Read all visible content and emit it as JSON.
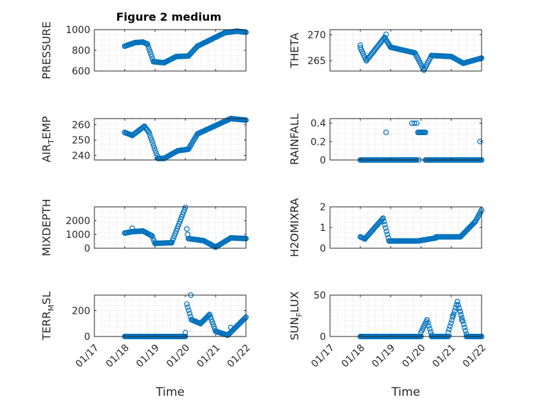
{
  "colors": {
    "marker": "#0072bd",
    "axis": "#262626",
    "grid": "#c9c9c9"
  },
  "chart_data": [
    {
      "type": "scatter",
      "title": "Figure 2 medium",
      "ylabel": "PRESSURE",
      "ylabel_sub": "",
      "xlabel": "",
      "xlim": [
        17,
        22
      ],
      "ylim": [
        600,
        1000
      ],
      "yticks": [
        600,
        800,
        1000
      ],
      "yticklabels": [
        "600",
        "800",
        "1000"
      ],
      "xticklabels": [],
      "grid": true,
      "segments": [
        {
          "x0": 18.0,
          "x1": 18.35,
          "y0": 840,
          "y1": 875
        },
        {
          "x0": 18.35,
          "x1": 18.6,
          "y0": 875,
          "y1": 880
        },
        {
          "x0": 18.6,
          "x1": 18.75,
          "y0": 880,
          "y1": 860
        },
        {
          "x0": 18.75,
          "x1": 18.95,
          "y0": 860,
          "y1": 690
        },
        {
          "x0": 18.95,
          "x1": 19.3,
          "y0": 690,
          "y1": 680
        },
        {
          "x0": 19.3,
          "x1": 19.7,
          "y0": 680,
          "y1": 740
        },
        {
          "x0": 19.7,
          "x1": 20.1,
          "y0": 740,
          "y1": 745
        },
        {
          "x0": 20.1,
          "x1": 20.4,
          "y0": 745,
          "y1": 840
        },
        {
          "x0": 20.4,
          "x1": 21.3,
          "y0": 840,
          "y1": 970
        },
        {
          "x0": 21.3,
          "x1": 21.7,
          "y0": 970,
          "y1": 985
        },
        {
          "x0": 21.7,
          "x1": 22.0,
          "y0": 985,
          "y1": 975
        }
      ],
      "points": []
    },
    {
      "type": "scatter",
      "title": "",
      "ylabel": "THETA",
      "ylabel_sub": "",
      "xlabel": "",
      "xlim": [
        17,
        22
      ],
      "ylim": [
        263,
        271
      ],
      "yticks": [
        265,
        270
      ],
      "yticklabels": [
        "265",
        "270"
      ],
      "xticklabels": [],
      "grid": true,
      "segments": [
        {
          "x0": 18.0,
          "x1": 18.2,
          "y0": 267.5,
          "y1": 265.0
        },
        {
          "x0": 18.2,
          "x1": 18.8,
          "y0": 265.0,
          "y1": 269.5
        },
        {
          "x0": 18.8,
          "x1": 19.0,
          "y0": 269.5,
          "y1": 267.6
        },
        {
          "x0": 19.0,
          "x1": 19.8,
          "y0": 267.6,
          "y1": 266.5
        },
        {
          "x0": 19.8,
          "x1": 20.1,
          "y0": 266.5,
          "y1": 263.2
        },
        {
          "x0": 20.1,
          "x1": 20.35,
          "y0": 263.2,
          "y1": 266.0
        },
        {
          "x0": 20.35,
          "x1": 21.0,
          "y0": 266.0,
          "y1": 265.8
        },
        {
          "x0": 21.0,
          "x1": 21.4,
          "y0": 265.8,
          "y1": 264.5
        },
        {
          "x0": 21.4,
          "x1": 22.0,
          "y0": 264.5,
          "y1": 265.5
        }
      ],
      "points": [
        [
          18.0,
          268.0
        ],
        [
          18.85,
          270.1
        ]
      ]
    },
    {
      "type": "scatter",
      "title": "",
      "ylabel": "AIR",
      "ylabel_sub": "T",
      "ylabel_suffix": "EMP",
      "xlabel": "",
      "xlim": [
        17,
        22
      ],
      "ylim": [
        237,
        264
      ],
      "yticks": [
        240,
        250,
        260
      ],
      "yticklabels": [
        "240",
        "250",
        "260"
      ],
      "xticklabels": [],
      "grid": true,
      "segments": [
        {
          "x0": 18.0,
          "x1": 18.25,
          "y0": 255,
          "y1": 253
        },
        {
          "x0": 18.25,
          "x1": 18.65,
          "y0": 253,
          "y1": 259
        },
        {
          "x0": 18.65,
          "x1": 18.8,
          "y0": 259,
          "y1": 255
        },
        {
          "x0": 18.8,
          "x1": 19.1,
          "y0": 255,
          "y1": 238
        },
        {
          "x0": 19.1,
          "x1": 19.3,
          "y0": 238,
          "y1": 238
        },
        {
          "x0": 19.3,
          "x1": 19.75,
          "y0": 238,
          "y1": 243
        },
        {
          "x0": 19.75,
          "x1": 20.1,
          "y0": 243,
          "y1": 244
        },
        {
          "x0": 20.1,
          "x1": 20.4,
          "y0": 244,
          "y1": 254
        },
        {
          "x0": 20.4,
          "x1": 21.5,
          "y0": 254,
          "y1": 264
        },
        {
          "x0": 21.5,
          "x1": 22.0,
          "y0": 264,
          "y1": 263
        }
      ],
      "points": []
    },
    {
      "type": "scatter",
      "title": "",
      "ylabel": "RAINFALL",
      "ylabel_sub": "",
      "xlabel": "",
      "xlim": [
        17,
        22
      ],
      "ylim": [
        0,
        0.45
      ],
      "yticks": [
        0,
        0.2,
        0.4
      ],
      "yticklabels": [
        "0",
        "0.2",
        "0.4"
      ],
      "xticklabels": [],
      "grid": true,
      "segments": [
        {
          "x0": 18.0,
          "x1": 19.85,
          "y0": 0,
          "y1": 0
        },
        {
          "x0": 20.15,
          "x1": 22.0,
          "y0": 0,
          "y1": 0
        },
        {
          "x0": 19.9,
          "x1": 20.15,
          "y0": 0.3,
          "y1": 0.3
        }
      ],
      "points": [
        [
          18.85,
          0.3
        ],
        [
          19.7,
          0.4
        ],
        [
          19.78,
          0.4
        ],
        [
          19.86,
          0.4
        ],
        [
          19.93,
          0.0
        ],
        [
          21.95,
          0.2
        ]
      ]
    },
    {
      "type": "scatter",
      "title": "",
      "ylabel": "MIXDEPTH",
      "ylabel_sub": "",
      "xlabel": "",
      "xlim": [
        17,
        22
      ],
      "ylim": [
        0,
        3000
      ],
      "yticks": [
        0,
        1000,
        2000
      ],
      "yticklabels": [
        "0",
        "1000",
        "2000"
      ],
      "xticklabels": [],
      "grid": true,
      "segments": [
        {
          "x0": 18.0,
          "x1": 18.25,
          "y0": 1100,
          "y1": 1200
        },
        {
          "x0": 18.25,
          "x1": 18.6,
          "y0": 1200,
          "y1": 1250
        },
        {
          "x0": 18.6,
          "x1": 18.9,
          "y0": 1250,
          "y1": 900
        },
        {
          "x0": 18.9,
          "x1": 19.0,
          "y0": 900,
          "y1": 350
        },
        {
          "x0": 19.0,
          "x1": 19.55,
          "y0": 350,
          "y1": 400
        },
        {
          "x0": 19.55,
          "x1": 20.0,
          "y0": 400,
          "y1": 2950
        },
        {
          "x0": 20.1,
          "x1": 20.6,
          "y0": 700,
          "y1": 550
        },
        {
          "x0": 20.6,
          "x1": 21.0,
          "y0": 550,
          "y1": 80
        },
        {
          "x0": 21.0,
          "x1": 21.5,
          "y0": 80,
          "y1": 750
        },
        {
          "x0": 21.5,
          "x1": 22.0,
          "y0": 750,
          "y1": 700
        }
      ],
      "points": [
        [
          18.25,
          1450
        ],
        [
          20.05,
          1400
        ],
        [
          20.08,
          1000
        ]
      ]
    },
    {
      "type": "scatter",
      "title": "",
      "ylabel": "H2OMIXRA",
      "ylabel_sub": "",
      "xlabel": "",
      "xlim": [
        17,
        22
      ],
      "ylim": [
        0,
        2
      ],
      "yticks": [
        0,
        1,
        2
      ],
      "yticklabels": [
        "0",
        "1",
        "2"
      ],
      "xticklabels": [],
      "grid": true,
      "segments": [
        {
          "x0": 18.0,
          "x1": 18.15,
          "y0": 0.55,
          "y1": 0.45
        },
        {
          "x0": 18.15,
          "x1": 18.75,
          "y0": 0.45,
          "y1": 1.45
        },
        {
          "x0": 18.75,
          "x1": 18.95,
          "y0": 1.45,
          "y1": 0.35
        },
        {
          "x0": 18.95,
          "x1": 19.9,
          "y0": 0.35,
          "y1": 0.35
        },
        {
          "x0": 19.9,
          "x1": 20.5,
          "y0": 0.35,
          "y1": 0.5
        },
        {
          "x0": 20.5,
          "x1": 21.3,
          "y0": 0.55,
          "y1": 0.55
        },
        {
          "x0": 21.3,
          "x1": 21.8,
          "y0": 0.55,
          "y1": 1.3
        },
        {
          "x0": 21.8,
          "x1": 22.0,
          "y0": 1.3,
          "y1": 1.85
        }
      ],
      "points": []
    },
    {
      "type": "scatter",
      "title": "",
      "ylabel": "TERR",
      "ylabel_sub": "M",
      "ylabel_suffix": "SL",
      "xlabel": "Time",
      "xlim": [
        17,
        22
      ],
      "ylim": [
        0,
        320
      ],
      "yticks": [
        0,
        200
      ],
      "yticklabels": [
        "0",
        "200"
      ],
      "xticks": [
        17,
        18,
        19,
        20,
        21,
        22
      ],
      "xticklabels": [
        "01/17",
        "01/18",
        "01/19",
        "01/20",
        "01/21",
        "01/22"
      ],
      "grid": true,
      "segments": [
        {
          "x0": 18.0,
          "x1": 20.0,
          "y0": 0,
          "y1": 0
        },
        {
          "x0": 20.05,
          "x1": 20.2,
          "y0": 250,
          "y1": 130
        },
        {
          "x0": 20.2,
          "x1": 20.5,
          "y0": 130,
          "y1": 100
        },
        {
          "x0": 20.5,
          "x1": 20.8,
          "y0": 100,
          "y1": 170
        },
        {
          "x0": 20.8,
          "x1": 21.0,
          "y0": 170,
          "y1": 40
        },
        {
          "x0": 21.0,
          "x1": 21.4,
          "y0": 40,
          "y1": 10
        },
        {
          "x0": 21.4,
          "x1": 22.0,
          "y0": 10,
          "y1": 150
        }
      ],
      "points": [
        [
          20.18,
          320
        ],
        [
          20.0,
          30
        ],
        [
          21.5,
          70
        ]
      ]
    },
    {
      "type": "scatter",
      "title": "",
      "ylabel": "SUN",
      "ylabel_sub": "F",
      "ylabel_suffix": "LUX",
      "xlabel": "Time",
      "xlim": [
        17,
        22
      ],
      "ylim": [
        0,
        50
      ],
      "yticks": [
        0,
        50
      ],
      "yticklabels": [
        "0",
        "50"
      ],
      "xticks": [
        17,
        18,
        19,
        20,
        21,
        22
      ],
      "xticklabels": [
        "01/17",
        "01/18",
        "01/19",
        "01/20",
        "01/21",
        "01/22"
      ],
      "grid": true,
      "segments": [
        {
          "x0": 18.0,
          "x1": 20.0,
          "y0": 0,
          "y1": 0
        },
        {
          "x0": 20.0,
          "x1": 20.2,
          "y0": 5,
          "y1": 20
        },
        {
          "x0": 20.2,
          "x1": 20.35,
          "y0": 20,
          "y1": 2
        },
        {
          "x0": 20.35,
          "x1": 20.9,
          "y0": 0,
          "y1": 0
        },
        {
          "x0": 20.9,
          "x1": 21.2,
          "y0": 5,
          "y1": 42
        },
        {
          "x0": 21.2,
          "x1": 21.5,
          "y0": 42,
          "y1": 3
        },
        {
          "x0": 21.5,
          "x1": 22.0,
          "y0": 0,
          "y1": 0
        }
      ],
      "points": [
        [
          21.05,
          25
        ],
        [
          21.3,
          30
        ],
        [
          21.35,
          20
        ]
      ]
    }
  ]
}
